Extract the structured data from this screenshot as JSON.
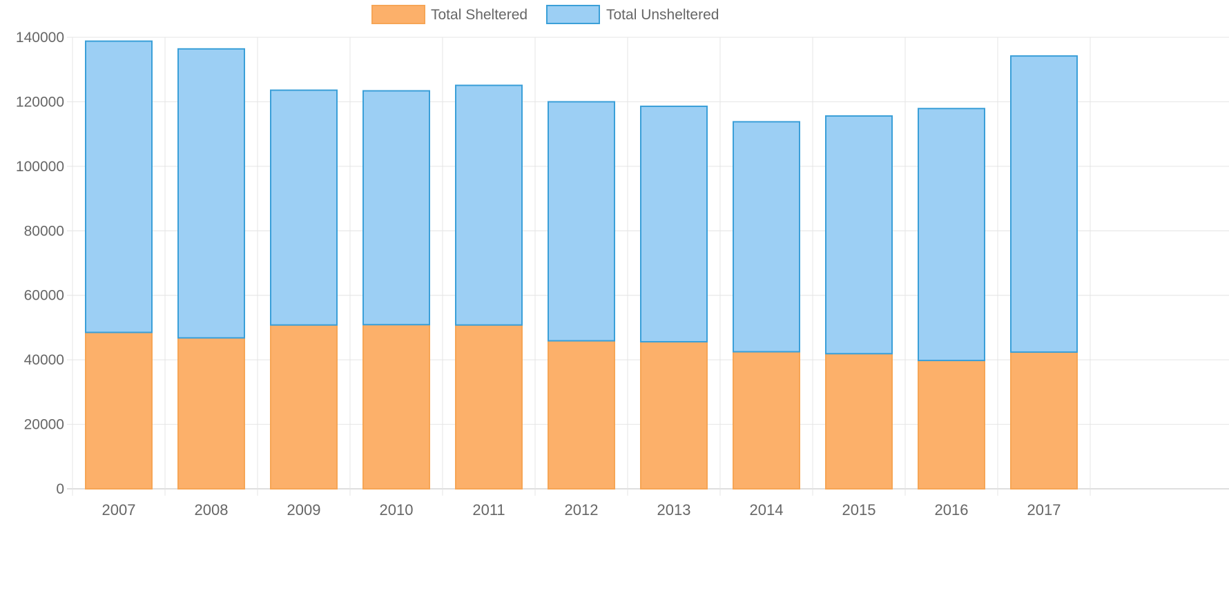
{
  "colors": {
    "sheltered_fill": "#fcb06a",
    "sheltered_stroke": "#f6a555",
    "unsheltered_fill": "#9ccff4",
    "unsheltered_stroke": "#3a9fd8",
    "grid": "#e4e4e4",
    "tick_text": "#666666"
  },
  "chart_data": {
    "type": "bar",
    "stacked": true,
    "categories": [
      "2007",
      "2008",
      "2009",
      "2010",
      "2011",
      "2012",
      "2013",
      "2014",
      "2015",
      "2016",
      "2017"
    ],
    "series": [
      {
        "name": "Total Sheltered",
        "color": "#fcb06a",
        "values": [
          48500,
          46800,
          50800,
          50900,
          50800,
          45900,
          45600,
          42500,
          41900,
          39800,
          42400
        ]
      },
      {
        "name": "Total Unsheltered",
        "color": "#9ccff4",
        "values": [
          90300,
          89600,
          72800,
          72500,
          74300,
          74100,
          73000,
          71300,
          73700,
          78100,
          91800
        ]
      }
    ],
    "yticks": [
      "0",
      "20000",
      "40000",
      "60000",
      "80000",
      "100000",
      "120000",
      "140000"
    ],
    "ylim": [
      0,
      140000
    ],
    "xlabel": "",
    "ylabel": "",
    "title": "",
    "grid": true,
    "legend": "top-center"
  }
}
